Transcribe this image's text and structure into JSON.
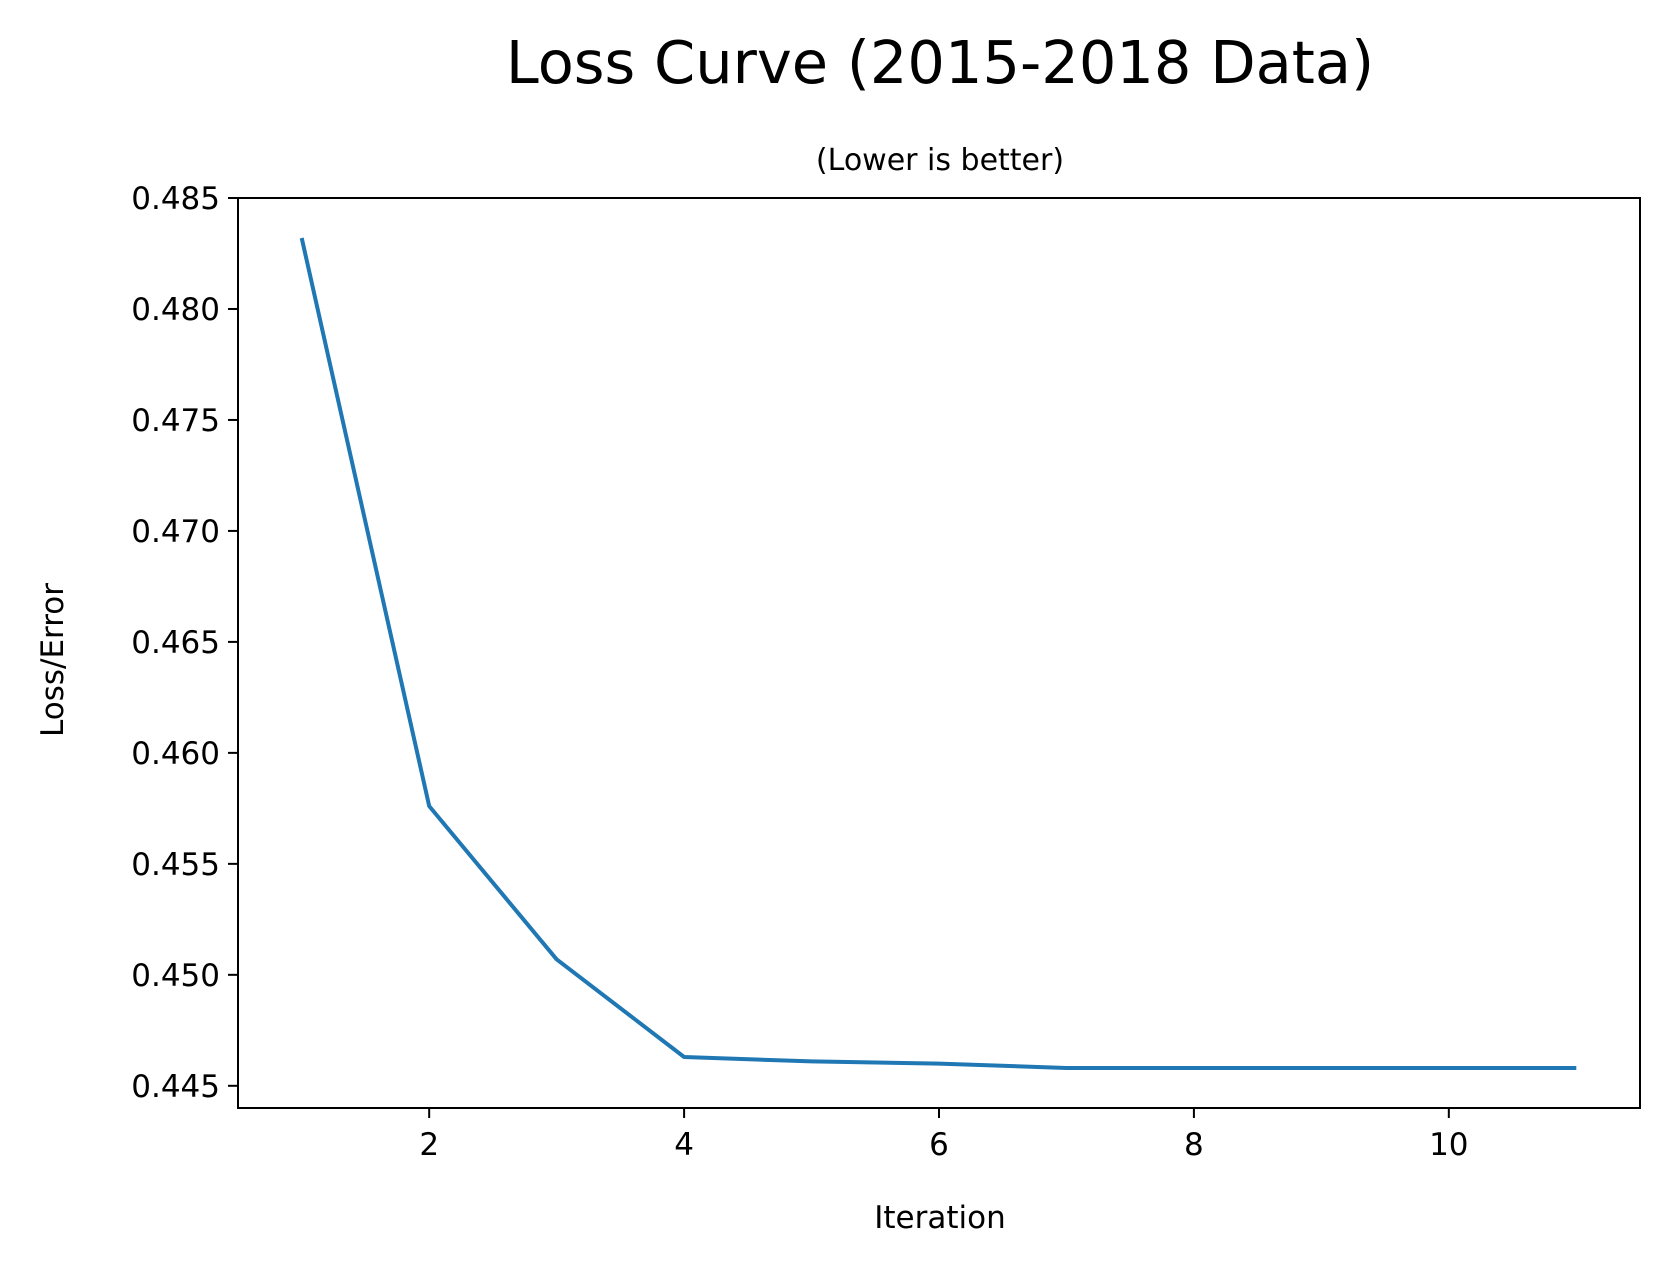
{
  "chart_data": {
    "type": "line",
    "title": "Loss Curve (2015-2018 Data)",
    "subtitle": "(Lower is better)",
    "xlabel": "Iteration",
    "ylabel": "Loss/Error",
    "xlim": [
      0.5,
      11.5
    ],
    "ylim": [
      0.444,
      0.485
    ],
    "xticks": [
      2,
      4,
      6,
      8,
      10
    ],
    "yticks": [
      0.445,
      0.45,
      0.455,
      0.46,
      0.465,
      0.47,
      0.475,
      0.48,
      0.485
    ],
    "ytick_labels": [
      "0.445",
      "0.450",
      "0.455",
      "0.460",
      "0.465",
      "0.470",
      "0.475",
      "0.480",
      "0.485"
    ],
    "grid": false,
    "series": [
      {
        "color": "#1f77b4",
        "x": [
          1,
          2,
          3,
          4,
          5,
          6,
          7,
          8,
          9,
          10,
          11
        ],
        "y": [
          0.4832,
          0.4576,
          0.4507,
          0.4463,
          0.4461,
          0.446,
          0.4458,
          0.4458,
          0.4458,
          0.4458,
          0.4458
        ]
      }
    ]
  }
}
